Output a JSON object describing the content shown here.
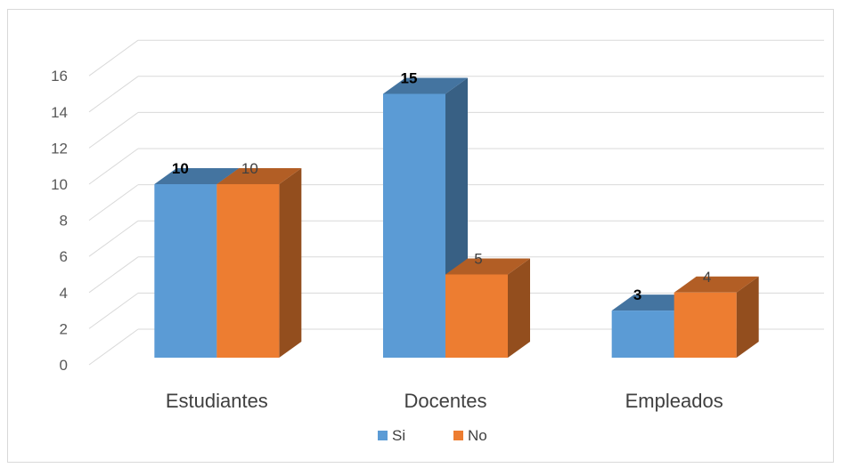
{
  "chart_data": {
    "type": "bar",
    "title": "",
    "xlabel": "",
    "ylabel": "",
    "categories": [
      "Estudiantes",
      "Docentes",
      "Empleados"
    ],
    "series": [
      {
        "name": "Si",
        "values": [
          10,
          15,
          3
        ],
        "color": "#5B9BD5"
      },
      {
        "name": "No",
        "values": [
          10,
          5,
          4
        ],
        "color": "#ED7D31"
      }
    ],
    "ylim": [
      0,
      16
    ],
    "yticks": [
      0,
      2,
      4,
      6,
      8,
      10,
      12,
      14,
      16
    ],
    "grid": true,
    "legend": "bottom",
    "style": "3d-clustered-column"
  }
}
